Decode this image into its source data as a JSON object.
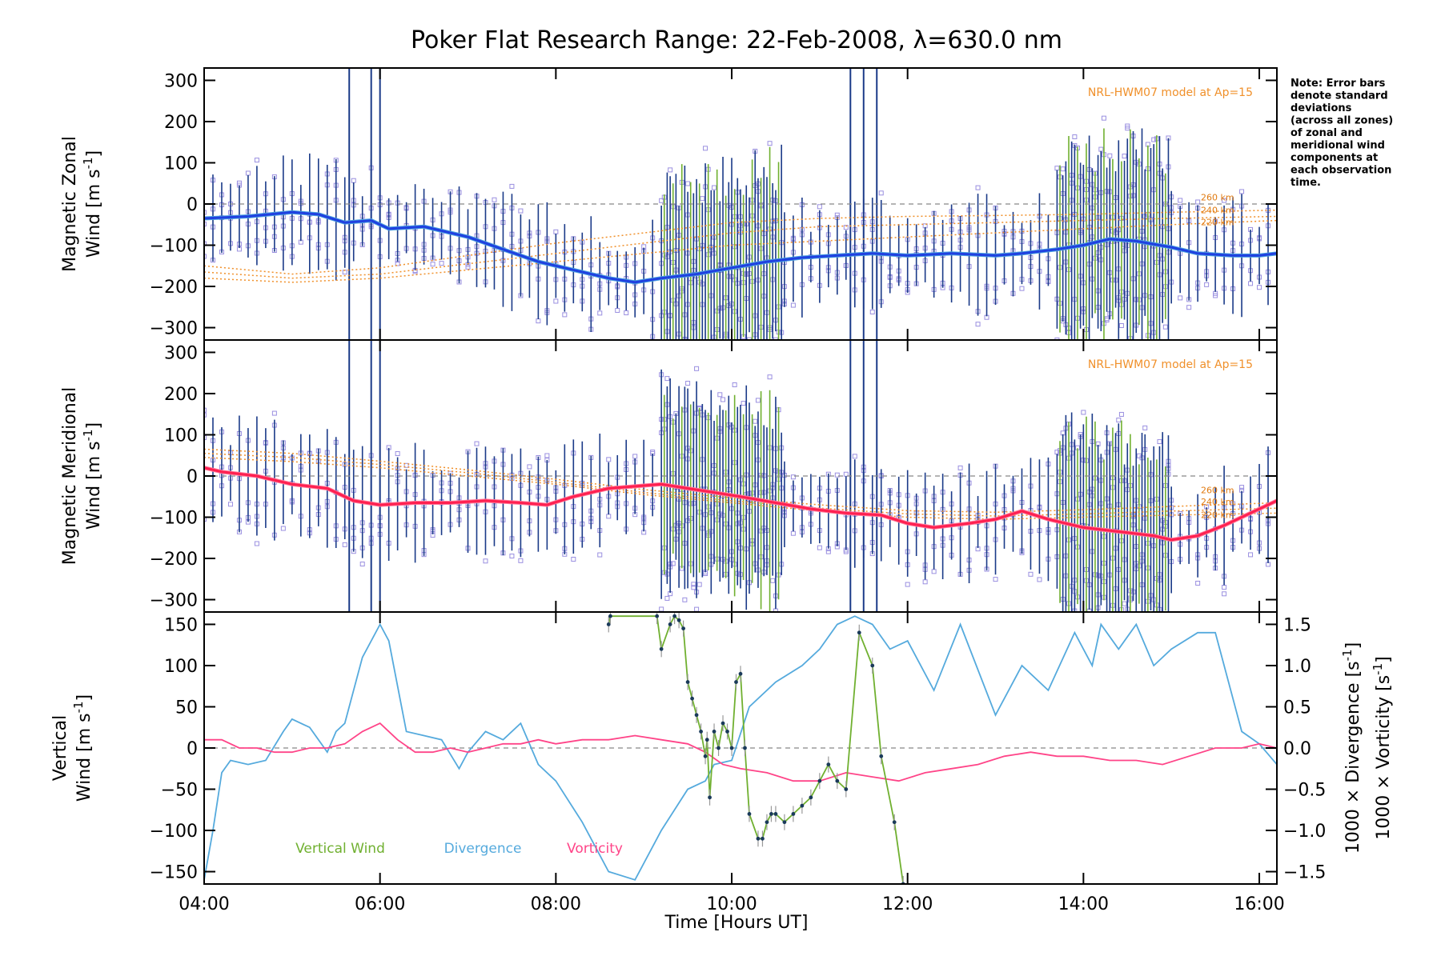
{
  "title": "Poker Flat Research Range: 22-Feb-2008, λ=630.0 nm",
  "note_lines": [
    "Note: Error bars",
    "denote standard",
    "deviations",
    "(across all zones)",
    "of zonal and",
    "meridional wind",
    "components at",
    "each observation",
    "time."
  ],
  "colors": {
    "zonal": "#2040e0",
    "zonal_light": "#4aa0e0",
    "meridional": "#ff2050",
    "model": "#f0902a",
    "scatter": "#9a8fe0",
    "vertical": "#70b030",
    "divergence": "#55aadd",
    "vorticity": "#ff4488",
    "errorbar": "#1a3a88"
  },
  "chart_data": [
    {
      "type": "line",
      "panel": "zonal",
      "ylabel_line1": "Magnetic Zonal",
      "ylabel_line2": "Wind",
      "ylabel_units": "[m s",
      "ylabel_exp": "-1",
      "ylabel_close": "]",
      "ylim": [
        -330,
        330
      ],
      "yticks": [
        -300,
        -200,
        -100,
        0,
        100,
        200,
        300
      ],
      "ytick_labels": [
        "−300",
        "−200",
        "−100",
        "0",
        "100",
        "200",
        "300"
      ],
      "model_label": "NRL-HWM07 model at Ap=15",
      "altitudes": [
        "260 km",
        "240 km",
        "220 km"
      ],
      "series": [
        {
          "role": "mean_wind",
          "x": [
            4.0,
            4.5,
            5.0,
            5.3,
            5.6,
            5.9,
            6.1,
            6.5,
            7.0,
            7.4,
            7.8,
            8.2,
            8.6,
            8.9,
            9.2,
            9.6,
            10.0,
            10.4,
            10.8,
            11.2,
            11.6,
            12.0,
            12.5,
            13.0,
            13.3,
            13.7,
            14.0,
            14.3,
            14.6,
            15.0,
            15.3,
            15.7,
            16.0,
            16.2
          ],
          "y": [
            -35,
            -30,
            -20,
            -25,
            -45,
            -40,
            -60,
            -55,
            -80,
            -110,
            -140,
            -160,
            -180,
            -190,
            -180,
            -170,
            -155,
            -140,
            -130,
            -125,
            -120,
            -125,
            -120,
            -125,
            -120,
            -110,
            -100,
            -85,
            -90,
            -105,
            -120,
            -125,
            -125,
            -120
          ]
        },
        {
          "role": "model_220km",
          "x": [
            4.0,
            5.0,
            6.0,
            7.0,
            8.0,
            9.0,
            10.0,
            11.0,
            12.0,
            13.0,
            14.0,
            15.0,
            16.2
          ],
          "y": [
            -180,
            -190,
            -180,
            -160,
            -140,
            -120,
            -100,
            -90,
            -80,
            -70,
            -60,
            -50,
            -40
          ]
        },
        {
          "role": "model_240km",
          "x": [
            4.0,
            5.0,
            6.0,
            7.0,
            8.0,
            9.0,
            10.0,
            11.0,
            12.0,
            13.0,
            14.0,
            15.0,
            16.2
          ],
          "y": [
            -165,
            -180,
            -170,
            -145,
            -120,
            -95,
            -70,
            -55,
            -50,
            -45,
            -40,
            -35,
            -30
          ]
        },
        {
          "role": "model_260km",
          "x": [
            4.0,
            5.0,
            6.0,
            7.0,
            8.0,
            9.0,
            10.0,
            11.0,
            12.0,
            13.0,
            14.0,
            15.0,
            16.2
          ],
          "y": [
            -150,
            -170,
            -155,
            -125,
            -95,
            -70,
            -45,
            -35,
            -30,
            -28,
            -25,
            -20,
            -15
          ]
        }
      ]
    },
    {
      "type": "line",
      "panel": "meridional",
      "ylabel_line1": "Magnetic Meridional",
      "ylabel_line2": "Wind",
      "ylabel_units": "[m s",
      "ylabel_exp": "-1",
      "ylabel_close": "]",
      "ylim": [
        -330,
        330
      ],
      "yticks": [
        -300,
        -200,
        -100,
        0,
        100,
        200,
        300
      ],
      "ytick_labels": [
        "−300",
        "−200",
        "−100",
        "0",
        "100",
        "200",
        "300"
      ],
      "model_label": "NRL-HWM07 model at Ap=15",
      "altitudes": [
        "260 km",
        "240 km",
        "220 km"
      ],
      "series": [
        {
          "role": "mean_wind",
          "x": [
            4.0,
            4.2,
            4.6,
            5.0,
            5.4,
            5.7,
            6.0,
            6.4,
            6.8,
            7.2,
            7.6,
            7.9,
            8.2,
            8.6,
            8.9,
            9.2,
            9.5,
            9.8,
            10.1,
            10.5,
            10.9,
            11.3,
            11.7,
            12.0,
            12.3,
            12.7,
            13.0,
            13.3,
            13.6,
            14.0,
            14.4,
            14.8,
            15.0,
            15.3,
            15.6,
            16.0,
            16.2
          ],
          "y": [
            20,
            10,
            0,
            -20,
            -30,
            -60,
            -70,
            -65,
            -65,
            -60,
            -65,
            -70,
            -50,
            -30,
            -25,
            -20,
            -30,
            -40,
            -50,
            -65,
            -80,
            -90,
            -95,
            -115,
            -125,
            -115,
            -105,
            -85,
            -105,
            -125,
            -135,
            -145,
            -155,
            -145,
            -120,
            -80,
            -60
          ]
        },
        {
          "role": "model_220km",
          "x": [
            4.0,
            5.0,
            6.0,
            7.0,
            8.0,
            9.0,
            10.0,
            11.0,
            12.0,
            13.0,
            14.0,
            15.0,
            16.2
          ],
          "y": [
            45,
            35,
            20,
            0,
            -20,
            -45,
            -65,
            -85,
            -100,
            -105,
            -100,
            -95,
            -90
          ]
        },
        {
          "role": "model_240km",
          "x": [
            4.0,
            5.0,
            6.0,
            7.0,
            8.0,
            9.0,
            10.0,
            11.0,
            12.0,
            13.0,
            14.0,
            15.0,
            16.2
          ],
          "y": [
            55,
            45,
            28,
            8,
            -15,
            -40,
            -60,
            -78,
            -92,
            -97,
            -92,
            -85,
            -78
          ]
        },
        {
          "role": "model_260km",
          "x": [
            4.0,
            5.0,
            6.0,
            7.0,
            8.0,
            9.0,
            10.0,
            11.0,
            12.0,
            13.0,
            14.0,
            15.0,
            16.2
          ],
          "y": [
            65,
            55,
            36,
            15,
            -8,
            -33,
            -53,
            -70,
            -84,
            -88,
            -82,
            -74,
            -65
          ]
        }
      ]
    },
    {
      "type": "line",
      "panel": "vertical",
      "ylabel_left_line1": "Vertical",
      "ylabel_left_line2": "Wind",
      "ylabel_left_units": "[m s",
      "ylabel_left_exp": "-1",
      "ylabel_left_close": "]",
      "ylabel_right1": "1000 × Divergence",
      "ylabel_right1_units": "[s",
      "ylabel_right1_exp": "-1",
      "ylabel_right1_close": "]",
      "ylabel_right2": "1000 × Vorticity",
      "ylabel_right2_units": "[s",
      "ylabel_right2_exp": "-1",
      "ylabel_right2_close": "]",
      "ylim": [
        -165,
        165
      ],
      "yticks": [
        -150,
        -100,
        -50,
        0,
        50,
        100,
        150
      ],
      "ytick_labels": [
        "−150",
        "−100",
        "−50",
        "0",
        "50",
        "100",
        "150"
      ],
      "ylim_right": [
        -1.65,
        1.65
      ],
      "yticks_right": [
        -1.5,
        -1.0,
        -0.5,
        0.0,
        0.5,
        1.0,
        1.5
      ],
      "ytick_right_labels": [
        "−1.5",
        "−1.0",
        "−0.5",
        "0.0",
        "0.5",
        "1.0",
        "1.5"
      ],
      "xlim": [
        4.0,
        16.2
      ],
      "xticks": [
        4,
        6,
        8,
        10,
        12,
        14,
        16
      ],
      "xtick_labels": [
        "04:00",
        "06:00",
        "08:00",
        "10:00",
        "12:00",
        "14:00",
        "16:00"
      ],
      "xlabel": "Time [Hours UT]",
      "legend": [
        "Vertical Wind",
        "Divergence",
        "Vorticity"
      ],
      "series": [
        {
          "name": "Vertical Wind",
          "x": [
            8.6,
            8.62,
            9.15,
            9.2,
            9.3,
            9.35,
            9.4,
            9.45,
            9.5,
            9.55,
            9.6,
            9.65,
            9.7,
            9.72,
            9.75,
            9.8,
            9.85,
            9.9,
            9.95,
            10.0,
            10.05,
            10.1,
            10.15,
            10.2,
            10.3,
            10.35,
            10.4,
            10.45,
            10.5,
            10.6,
            10.7,
            10.8,
            10.9,
            11.0,
            11.1,
            11.2,
            11.3,
            11.45,
            11.6,
            11.7,
            11.85,
            11.95
          ],
          "y": [
            150,
            160,
            160,
            120,
            150,
            160,
            155,
            145,
            80,
            60,
            40,
            20,
            -10,
            10,
            -60,
            20,
            0,
            30,
            20,
            0,
            80,
            90,
            0,
            -80,
            -110,
            -110,
            -90,
            -80,
            -80,
            -90,
            -80,
            -70,
            -60,
            -40,
            -20,
            -40,
            -50,
            140,
            100,
            -10,
            -90,
            -165
          ]
        },
        {
          "name": "Divergence",
          "x": [
            4.0,
            4.1,
            4.2,
            4.3,
            4.5,
            4.7,
            4.9,
            5.0,
            5.2,
            5.4,
            5.5,
            5.6,
            5.8,
            6.0,
            6.1,
            6.3,
            6.5,
            6.7,
            6.9,
            7.0,
            7.2,
            7.4,
            7.6,
            7.8,
            8.0,
            8.3,
            8.6,
            8.9,
            9.2,
            9.5,
            9.7,
            9.8,
            10.0,
            10.2,
            10.5,
            10.8,
            11.0,
            11.2,
            11.4,
            11.6,
            11.8,
            12.0,
            12.3,
            12.6,
            13.0,
            13.3,
            13.6,
            13.9,
            14.1,
            14.2,
            14.4,
            14.6,
            14.8,
            15.0,
            15.3,
            15.5,
            15.8,
            16.0,
            16.2
          ],
          "y": [
            -1.6,
            -1.0,
            -0.3,
            -0.15,
            -0.2,
            -0.15,
            0.2,
            0.35,
            0.25,
            -0.05,
            0.2,
            0.3,
            1.1,
            1.5,
            1.3,
            0.2,
            0.15,
            0.1,
            -0.25,
            -0.05,
            0.2,
            0.1,
            0.3,
            -0.2,
            -0.4,
            -0.9,
            -1.5,
            -1.6,
            -1.0,
            -0.5,
            -0.4,
            -0.2,
            -0.15,
            0.5,
            0.8,
            1.0,
            1.2,
            1.5,
            1.6,
            1.5,
            1.2,
            1.3,
            0.7,
            1.5,
            0.4,
            1.0,
            0.7,
            1.4,
            1.0,
            1.5,
            1.2,
            1.5,
            1.0,
            1.2,
            1.4,
            1.4,
            0.2,
            0.05,
            -0.2
          ]
        },
        {
          "name": "Vorticity",
          "x": [
            4.0,
            4.2,
            4.4,
            4.6,
            4.8,
            5.0,
            5.2,
            5.4,
            5.6,
            5.8,
            6.0,
            6.2,
            6.4,
            6.6,
            6.8,
            7.0,
            7.2,
            7.4,
            7.6,
            7.8,
            8.0,
            8.3,
            8.6,
            8.9,
            9.2,
            9.5,
            9.7,
            9.9,
            10.1,
            10.4,
            10.7,
            11.0,
            11.3,
            11.6,
            11.9,
            12.2,
            12.5,
            12.8,
            13.1,
            13.4,
            13.7,
            14.0,
            14.3,
            14.6,
            14.9,
            15.2,
            15.5,
            15.8,
            16.0,
            16.2
          ],
          "y": [
            0.1,
            0.1,
            0.0,
            0.0,
            -0.05,
            -0.05,
            0.0,
            0.0,
            0.05,
            0.2,
            0.3,
            0.1,
            -0.05,
            -0.05,
            0.0,
            -0.05,
            0.0,
            0.05,
            0.05,
            0.1,
            0.05,
            0.1,
            0.1,
            0.15,
            0.1,
            0.05,
            -0.05,
            -0.2,
            -0.25,
            -0.3,
            -0.4,
            -0.4,
            -0.3,
            -0.35,
            -0.4,
            -0.3,
            -0.25,
            -0.2,
            -0.1,
            -0.05,
            -0.1,
            -0.1,
            -0.15,
            -0.15,
            -0.2,
            -0.1,
            0.0,
            0.0,
            0.05,
            0.0
          ]
        }
      ]
    }
  ]
}
